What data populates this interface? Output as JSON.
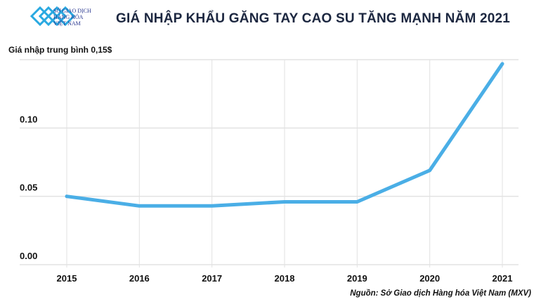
{
  "header": {
    "title": "GIÁ NHẬP KHẨU GĂNG TAY CAO SU TĂNG MẠNH NĂM 2021",
    "logo_text": [
      "SỞ GIAO DỊCH",
      "HÀNG HÓA",
      "VIỆT NAM"
    ]
  },
  "source": "Nguồn: Sở Giao dịch Hàng hóa Việt Nam (MXV)",
  "colors": {
    "line": "#4aaee6",
    "grid": "#e2e2e2",
    "title": "#1c2740",
    "logo": "#29a9e1"
  },
  "chart_data": {
    "type": "line",
    "title": "GIÁ NHẬP KHẨU GĂNG TAY CAO SU TĂNG MẠNH NĂM 2021",
    "ylabel": "Giá nhập trung bình 0,15$",
    "xlabel": "",
    "categories": [
      "2015",
      "2016",
      "2017",
      "2018",
      "2019",
      "2020",
      "2021"
    ],
    "values": [
      0.05,
      0.043,
      0.043,
      0.046,
      0.046,
      0.069,
      0.147
    ],
    "ylim": [
      0,
      0.15
    ],
    "yticks": [
      "0.00",
      "0.05",
      "0.10"
    ],
    "grid": true
  }
}
